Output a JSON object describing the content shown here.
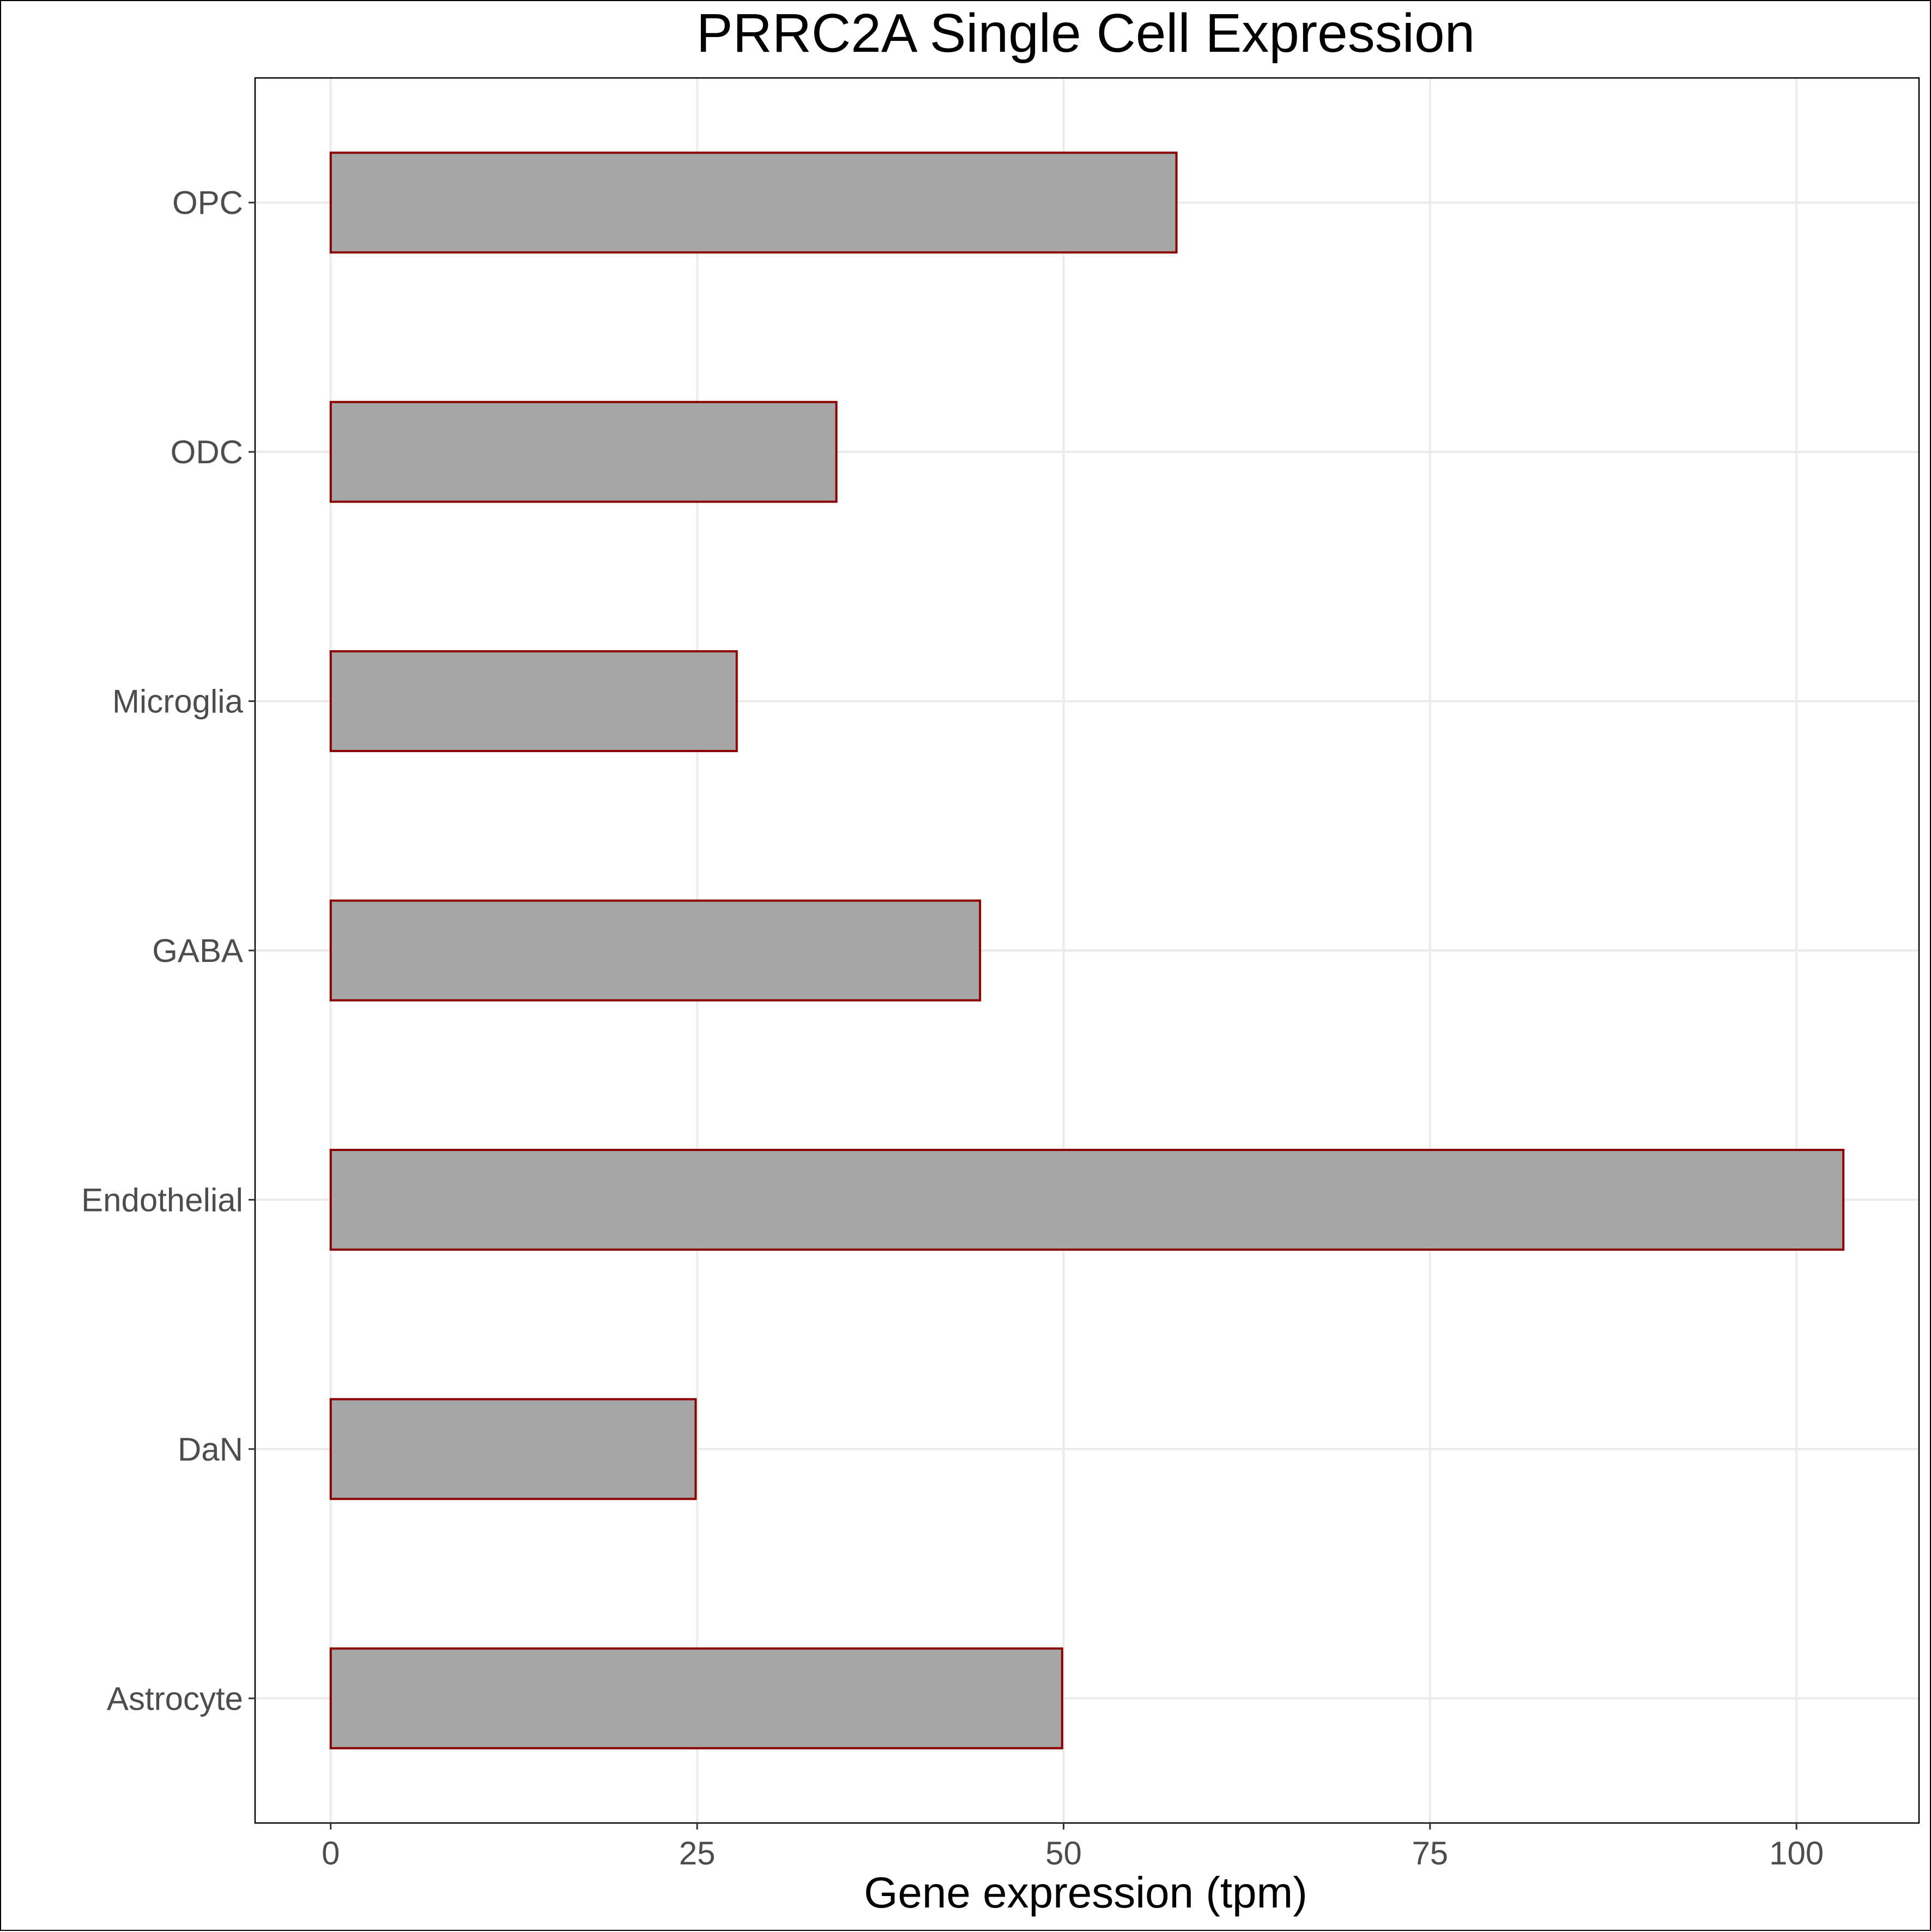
{
  "chart_data": {
    "type": "bar",
    "orientation": "horizontal",
    "title": "PRRC2A Single Cell Expression",
    "xlabel": "Gene expression (tpm)",
    "ylabel": "",
    "categories": [
      "Astrocyte",
      "DaN",
      "Endothelial",
      "GABA",
      "Microglia",
      "ODC",
      "OPC"
    ],
    "values": [
      49.9,
      24.9,
      103.2,
      44.3,
      27.7,
      34.5,
      57.7
    ],
    "xlim": [
      -5.16,
      108.36
    ],
    "xticks": [
      0,
      25,
      50,
      75,
      100
    ],
    "xtick_labels": [
      "0",
      "25",
      "50",
      "75",
      "100"
    ],
    "grid": true,
    "colors": {
      "bar_fill": "#a6a6a6",
      "bar_stroke": "#8b0000",
      "grid": "#ebebeb",
      "panel_border": "#000000"
    }
  }
}
